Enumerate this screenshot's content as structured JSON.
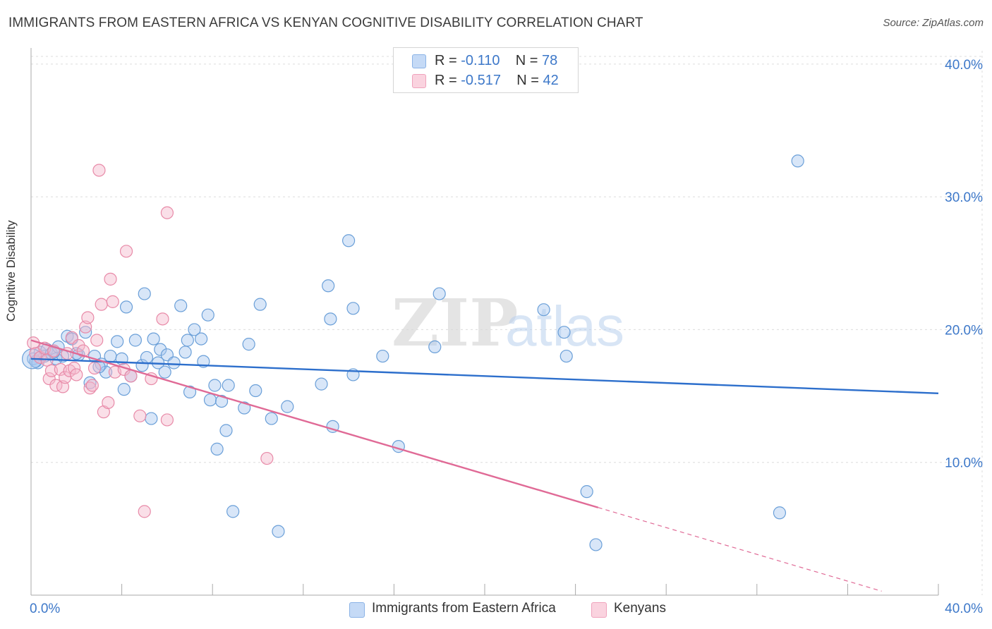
{
  "title": "IMMIGRANTS FROM EASTERN AFRICA VS KENYAN COGNITIVE DISABILITY CORRELATION CHART",
  "source": "Source: ZipAtlas.com",
  "watermark": {
    "zip": "ZIP",
    "atlas": "atlas"
  },
  "legend": [
    {
      "r_label": "R =",
      "r_value": "-0.110",
      "n_label": "N =",
      "n_value": "78",
      "color": "#a9c8f0"
    },
    {
      "r_label": "R =",
      "r_value": "-0.517",
      "n_label": "N =",
      "n_value": "42",
      "color": "#f5b8cb"
    }
  ],
  "chart_data": {
    "type": "scatter",
    "title": "IMMIGRANTS FROM EASTERN AFRICA VS KENYAN COGNITIVE DISABILITY CORRELATION CHART",
    "xlabel": "",
    "ylabel": "Cognitive Disability",
    "xlim": [
      0,
      40
    ],
    "ylim": [
      0,
      41
    ],
    "x_tick_labels": [
      "0.0%",
      "40.0%"
    ],
    "y_ticks": [
      10,
      20,
      30,
      40
    ],
    "y_tick_labels": [
      "10.0%",
      "20.0%",
      "30.0%",
      "40.0%"
    ],
    "grid": true,
    "legend_position": "top-center",
    "series": [
      {
        "name": "Immigrants from Eastern Africa",
        "color": "#a9c8f0",
        "stroke": "#6a9fd8",
        "trend": {
          "x": [
            0,
            40
          ],
          "y": [
            17.8,
            15.2
          ],
          "color": "#2d6fcc"
        },
        "points": [
          [
            0.1,
            17.8
          ],
          [
            0.3,
            17.5
          ],
          [
            0.4,
            18.3
          ],
          [
            0.6,
            18.0
          ],
          [
            0.7,
            18.5
          ],
          [
            0.9,
            18.2
          ],
          [
            1.1,
            17.8
          ],
          [
            1.2,
            18.7
          ],
          [
            1.4,
            18.0
          ],
          [
            1.6,
            19.5
          ],
          [
            1.8,
            19.3
          ],
          [
            2.1,
            18.1
          ],
          [
            2.4,
            19.8
          ],
          [
            2.6,
            16.0
          ],
          [
            2.8,
            18.0
          ],
          [
            3.1,
            17.4
          ],
          [
            3.3,
            16.8
          ],
          [
            3.5,
            18.0
          ],
          [
            3.8,
            19.1
          ],
          [
            4.0,
            17.8
          ],
          [
            4.1,
            15.5
          ],
          [
            4.2,
            21.7
          ],
          [
            4.4,
            16.5
          ],
          [
            4.6,
            19.2
          ],
          [
            4.9,
            17.3
          ],
          [
            5.0,
            22.7
          ],
          [
            5.1,
            17.9
          ],
          [
            5.3,
            13.3
          ],
          [
            5.4,
            19.3
          ],
          [
            5.6,
            17.5
          ],
          [
            5.7,
            18.5
          ],
          [
            5.9,
            16.8
          ],
          [
            6.0,
            18.1
          ],
          [
            6.3,
            17.5
          ],
          [
            6.6,
            21.8
          ],
          [
            6.8,
            18.3
          ],
          [
            6.9,
            19.2
          ],
          [
            7.0,
            15.3
          ],
          [
            7.2,
            20.0
          ],
          [
            7.5,
            19.3
          ],
          [
            7.6,
            17.6
          ],
          [
            7.8,
            21.1
          ],
          [
            7.9,
            14.7
          ],
          [
            8.1,
            15.8
          ],
          [
            8.2,
            11.0
          ],
          [
            8.4,
            14.6
          ],
          [
            8.6,
            12.4
          ],
          [
            8.7,
            15.8
          ],
          [
            8.9,
            6.3
          ],
          [
            9.4,
            14.1
          ],
          [
            9.6,
            18.9
          ],
          [
            9.9,
            15.4
          ],
          [
            10.1,
            21.9
          ],
          [
            10.6,
            13.3
          ],
          [
            11.3,
            14.2
          ],
          [
            12.8,
            15.9
          ],
          [
            13.1,
            23.3
          ],
          [
            13.2,
            20.8
          ],
          [
            13.3,
            12.7
          ],
          [
            14.0,
            26.7
          ],
          [
            14.2,
            21.6
          ],
          [
            14.2,
            16.6
          ],
          [
            10.9,
            4.8
          ],
          [
            15.5,
            18.0
          ],
          [
            16.2,
            11.2
          ],
          [
            17.8,
            18.7
          ],
          [
            18.0,
            22.7
          ],
          [
            22.6,
            21.5
          ],
          [
            23.5,
            19.8
          ],
          [
            23.6,
            18.0
          ],
          [
            24.5,
            7.8
          ],
          [
            24.9,
            3.8
          ],
          [
            33.8,
            32.7
          ],
          [
            33.0,
            6.2
          ],
          [
            0.2,
            17.6
          ],
          [
            1.0,
            18.3
          ],
          [
            2.0,
            18.2
          ],
          [
            3.0,
            17.2
          ]
        ]
      },
      {
        "name": "Kenyans",
        "color": "#f5b8cb",
        "stroke": "#e88aa8",
        "trend": {
          "x": [
            0,
            25
          ],
          "y": [
            19.2,
            6.6
          ],
          "color": "#e06a96"
        },
        "trend_extension": {
          "x": [
            25,
            37.5
          ],
          "y": [
            6.6,
            0.3
          ]
        },
        "points": [
          [
            0.1,
            19.0
          ],
          [
            0.2,
            18.2
          ],
          [
            0.4,
            17.9
          ],
          [
            0.6,
            18.6
          ],
          [
            0.7,
            17.7
          ],
          [
            0.8,
            16.3
          ],
          [
            0.9,
            16.9
          ],
          [
            1.0,
            18.4
          ],
          [
            1.1,
            15.8
          ],
          [
            1.3,
            17.0
          ],
          [
            1.4,
            15.7
          ],
          [
            1.5,
            16.4
          ],
          [
            1.6,
            18.2
          ],
          [
            1.7,
            16.9
          ],
          [
            1.8,
            19.4
          ],
          [
            1.9,
            17.1
          ],
          [
            2.0,
            16.6
          ],
          [
            2.1,
            18.8
          ],
          [
            2.3,
            18.4
          ],
          [
            2.4,
            20.2
          ],
          [
            2.5,
            20.9
          ],
          [
            2.6,
            15.6
          ],
          [
            2.7,
            15.8
          ],
          [
            2.8,
            17.1
          ],
          [
            2.9,
            19.2
          ],
          [
            3.0,
            32.0
          ],
          [
            3.1,
            21.9
          ],
          [
            3.2,
            13.8
          ],
          [
            3.4,
            14.5
          ],
          [
            3.5,
            23.8
          ],
          [
            3.6,
            22.1
          ],
          [
            3.7,
            16.8
          ],
          [
            4.1,
            17.0
          ],
          [
            4.2,
            25.9
          ],
          [
            4.4,
            16.5
          ],
          [
            4.8,
            13.5
          ],
          [
            5.0,
            6.3
          ],
          [
            5.3,
            16.3
          ],
          [
            5.8,
            20.8
          ],
          [
            6.0,
            13.2
          ],
          [
            6.0,
            28.8
          ],
          [
            10.4,
            10.3
          ]
        ]
      }
    ]
  },
  "bottom_legend": [
    {
      "label": "Immigrants from Eastern Africa",
      "color": "#c5daf6",
      "border": "#8bb3e6"
    },
    {
      "label": "Kenyans",
      "color": "#fad3df",
      "border": "#f0a2bc"
    }
  ]
}
